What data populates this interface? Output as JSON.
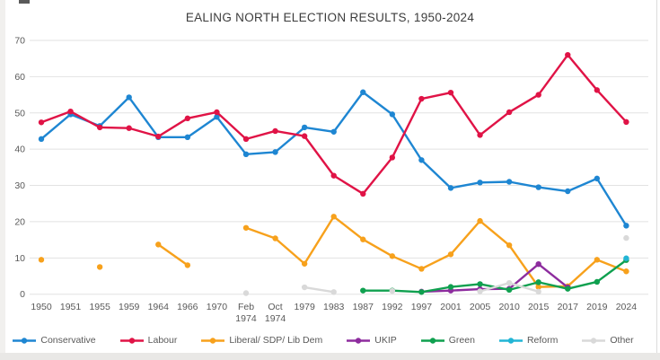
{
  "chart_data": {
    "type": "line",
    "title": "EALING NORTH ELECTION RESULTS, 1950-2024",
    "categories": [
      "1950",
      "1951",
      "1955",
      "1959",
      "1964",
      "1966",
      "1970",
      "Feb 1974",
      "Oct 1974",
      "1979",
      "1983",
      "1987",
      "1992",
      "1997",
      "2001",
      "2005",
      "2010",
      "2015",
      "2017",
      "2019",
      "2024"
    ],
    "series": [
      {
        "name": "Conservative",
        "color": "#1e86d2",
        "values": [
          42.8,
          49.6,
          46.4,
          54.3,
          43.3,
          43.3,
          48.9,
          38.6,
          39.2,
          46.0,
          44.8,
          55.7,
          49.6,
          37.0,
          29.3,
          30.8,
          31.0,
          29.5,
          28.4,
          31.9,
          18.9
        ]
      },
      {
        "name": "Labour",
        "color": "#e01346",
        "values": [
          47.4,
          50.4,
          46.0,
          45.8,
          43.5,
          48.5,
          50.2,
          42.8,
          45.0,
          43.6,
          32.7,
          27.7,
          37.7,
          53.9,
          55.6,
          43.9,
          50.2,
          55.0,
          66.0,
          56.3,
          47.5
        ]
      },
      {
        "name": "Liberal/ SDP/ Lib Dem",
        "color": "#f7a11c",
        "values": [
          9.5,
          null,
          7.5,
          null,
          13.7,
          8.0,
          null,
          18.3,
          15.4,
          8.4,
          21.4,
          15.1,
          10.5,
          7.0,
          11.0,
          20.2,
          13.5,
          2.0,
          2.2,
          9.5,
          6.3
        ]
      },
      {
        "name": "UKIP",
        "color": "#8d2c9e",
        "values": [
          null,
          null,
          null,
          null,
          null,
          null,
          null,
          null,
          null,
          null,
          null,
          null,
          null,
          0.7,
          1.0,
          1.4,
          1.5,
          8.3,
          1.9,
          null,
          null
        ]
      },
      {
        "name": "Green",
        "color": "#0fa04f",
        "values": [
          null,
          null,
          null,
          null,
          null,
          null,
          null,
          null,
          null,
          null,
          null,
          1.0,
          1.0,
          0.6,
          2.0,
          2.8,
          1.2,
          3.3,
          1.5,
          3.4,
          9.4
        ]
      },
      {
        "name": "Reform",
        "color": "#22b5d5",
        "values": [
          null,
          null,
          null,
          null,
          null,
          null,
          null,
          null,
          null,
          null,
          null,
          null,
          null,
          null,
          null,
          null,
          null,
          null,
          null,
          null,
          9.9
        ]
      },
      {
        "name": "Other",
        "color": "#d9d9d9",
        "values": [
          null,
          null,
          null,
          null,
          null,
          null,
          null,
          0.3,
          null,
          1.9,
          0.6,
          null,
          0.9,
          null,
          null,
          0.8,
          3.1,
          0.7,
          null,
          null,
          15.5
        ]
      }
    ],
    "yticks": [
      0,
      10,
      20,
      30,
      40,
      50,
      60,
      70
    ],
    "ylim": [
      0,
      70
    ],
    "xlabel": "",
    "ylabel": "",
    "grid": "horizontal",
    "legend_position": "bottom"
  },
  "appearance": {
    "gridline_color": "#e2e2e2",
    "tick_label_color": "#595959",
    "title_color": "#3c3c3c"
  }
}
